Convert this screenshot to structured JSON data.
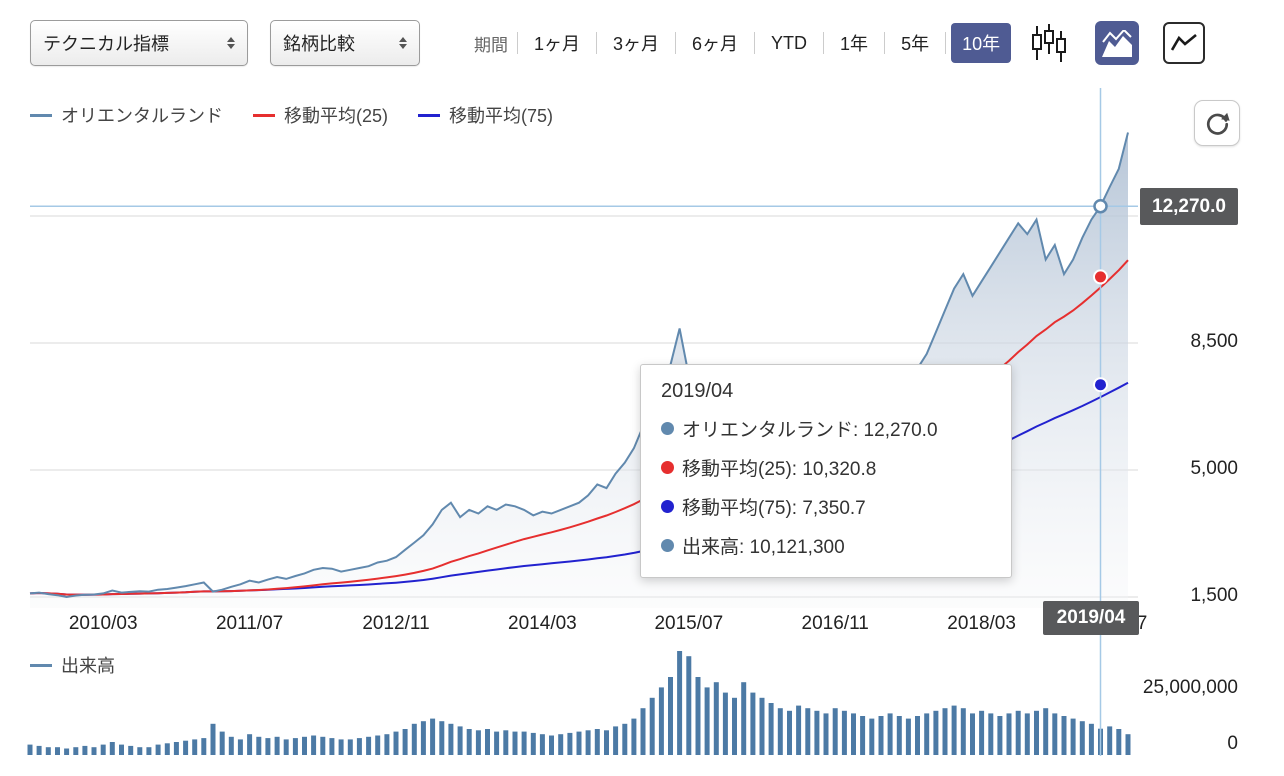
{
  "toolbar": {
    "select_technical": "テクニカル指標",
    "select_compare": "銘柄比較",
    "period_label": "期間",
    "periods": [
      {
        "key": "1m",
        "label": "1ヶ月"
      },
      {
        "key": "3m",
        "label": "3ヶ月"
      },
      {
        "key": "6m",
        "label": "6ヶ月"
      },
      {
        "key": "ytd",
        "label": "YTD"
      },
      {
        "key": "1y",
        "label": "1年"
      },
      {
        "key": "5y",
        "label": "5年"
      },
      {
        "key": "10y",
        "label": "10年"
      }
    ],
    "selected_period": "10年"
  },
  "legend": {
    "price": "オリエンタルランド",
    "ma25": "移動平均(25)",
    "ma75": "移動平均(75)",
    "volume": "出来高"
  },
  "colors": {
    "price": "#6189ae",
    "ma25": "#e62f2f",
    "ma75": "#2222cf",
    "volume_bar": "#4c7aa5",
    "selected_bg": "#4f5b93",
    "crosshair": "#a5c9e6",
    "badge_bg": "#58595b",
    "grid": "#d8d8d8"
  },
  "crosshair": {
    "date": "2019/04",
    "price_label": "12,270.0"
  },
  "tooltip": {
    "title": "2019/04",
    "rows": [
      {
        "key": "price",
        "color": "#6189ae",
        "text": "オリエンタルランド: 12,270.0"
      },
      {
        "key": "ma25",
        "color": "#e62f2f",
        "text": "移動平均(25): 10,320.8"
      },
      {
        "key": "ma75",
        "color": "#2222cf",
        "text": "移動平均(75): 7,350.7"
      },
      {
        "key": "volume",
        "color": "#6189ae",
        "text": "出来高: 10,121,300"
      }
    ]
  },
  "chart_data": {
    "type": "area",
    "interval": "monthly",
    "x_start": "2009/07",
    "x_end": "2019/07",
    "series_names": [
      "オリエンタルランド",
      "移動平均(25)",
      "移動平均(75)",
      "出来高"
    ],
    "price_ylim": [
      1300,
      15500
    ],
    "price_gridlines": [
      1500,
      5000,
      8500,
      12000
    ],
    "price_yticks": [
      {
        "label": "8,500",
        "value": 8500
      },
      {
        "label": "5,000",
        "value": 5000
      },
      {
        "label": "1,500",
        "value": 1500
      }
    ],
    "volume_yticks": [
      {
        "label": "25,000,000",
        "value_millions": 25
      },
      {
        "label": "0",
        "value_millions": 0
      }
    ],
    "x_ticks": [
      {
        "label": "2010/03",
        "index": 8
      },
      {
        "label": "2011/07",
        "index": 24
      },
      {
        "label": "2012/11",
        "index": 40
      },
      {
        "label": "2014/03",
        "index": 56
      },
      {
        "label": "2015/07",
        "index": 72
      },
      {
        "label": "2016/11",
        "index": 88
      },
      {
        "label": "2018/03",
        "index": 104
      },
      {
        "label": "2019/07",
        "index": 120
      }
    ],
    "ma_windows": [
      25,
      75
    ],
    "crosshair_index": 117,
    "crosshair_values": {
      "price": 12270.0,
      "ma25": 10320.8,
      "ma75": 7350.7,
      "volume": 10121300
    },
    "price": [
      1600,
      1620,
      1580,
      1550,
      1500,
      1540,
      1560,
      1570,
      1600,
      1680,
      1620,
      1640,
      1660,
      1650,
      1700,
      1720,
      1760,
      1800,
      1850,
      1900,
      1650,
      1700,
      1780,
      1850,
      1950,
      1900,
      1980,
      2050,
      2000,
      2080,
      2150,
      2250,
      2300,
      2280,
      2200,
      2250,
      2300,
      2350,
      2450,
      2500,
      2600,
      2800,
      3000,
      3200,
      3500,
      3900,
      4100,
      3700,
      3900,
      3800,
      4000,
      3900,
      4050,
      4000,
      3900,
      3750,
      3850,
      3800,
      3900,
      4000,
      4100,
      4300,
      4600,
      4500,
      4900,
      5200,
      5600,
      6200,
      6800,
      7300,
      7900,
      8900,
      7600,
      7300,
      7000,
      7300,
      7500,
      7400,
      6800,
      6300,
      6500,
      6200,
      6000,
      5900,
      6200,
      6100,
      6300,
      6200,
      6500,
      6600,
      6400,
      6600,
      6700,
      7000,
      7200,
      7400,
      7600,
      7800,
      8200,
      8800,
      9400,
      10000,
      10400,
      9800,
      10200,
      10600,
      11000,
      11400,
      11800,
      11500,
      11900,
      10800,
      11200,
      10400,
      10800,
      11400,
      11900,
      12270,
      12800,
      13300,
      14300
    ],
    "volume_millions": [
      4,
      3.5,
      3,
      3,
      2.5,
      3,
      3.5,
      3,
      4,
      5,
      4,
      3.5,
      3,
      3,
      4,
      4.5,
      5,
      5.5,
      6,
      6.5,
      12,
      9,
      7,
      6,
      8,
      7,
      6.5,
      7,
      6,
      6.5,
      7,
      7.5,
      7,
      6.5,
      6,
      6,
      6.5,
      7,
      7.5,
      8,
      9,
      10,
      12,
      13,
      14,
      13,
      12,
      11,
      10,
      9.5,
      10,
      9,
      9.5,
      9,
      9,
      8.5,
      8,
      7.5,
      8,
      8.5,
      9,
      9.5,
      10,
      9.5,
      11,
      12,
      14,
      18,
      22,
      26,
      30,
      40,
      38,
      30,
      26,
      28,
      24,
      22,
      28,
      24,
      22,
      20,
      18,
      17,
      19,
      18,
      17,
      16,
      18,
      17,
      16,
      15,
      14,
      15,
      16,
      15,
      14,
      15,
      16,
      17,
      18,
      19,
      18,
      16,
      17,
      16,
      15,
      16,
      17,
      16,
      17,
      18,
      16,
      15,
      14,
      13,
      12,
      10.1213,
      11,
      10,
      8
    ]
  }
}
